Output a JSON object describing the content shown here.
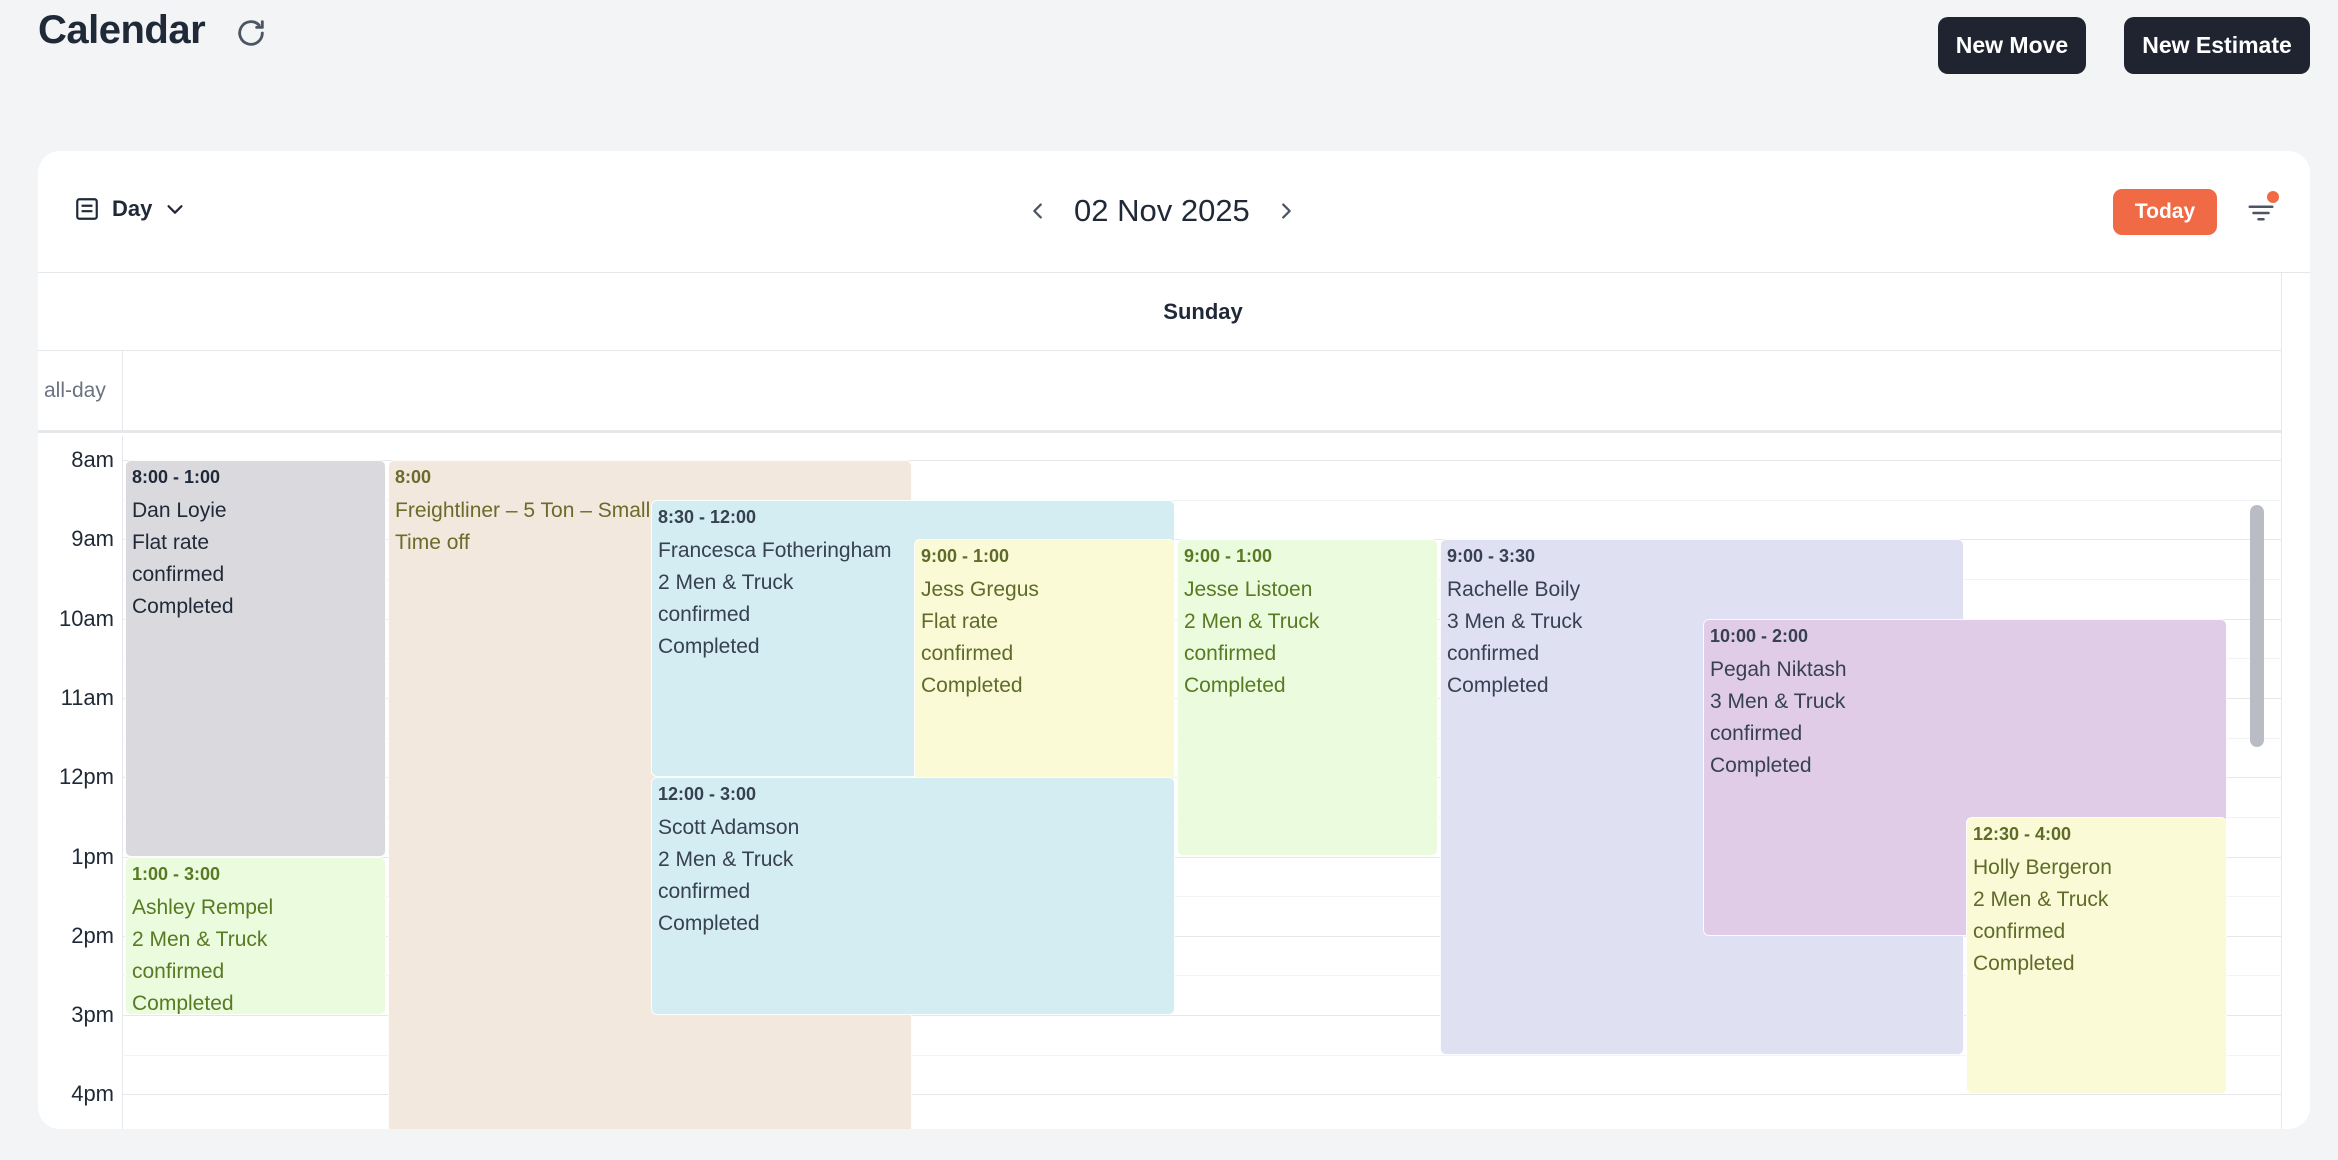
{
  "header": {
    "title": "Calendar",
    "new_move_label": "New Move",
    "new_estimate_label": "New Estimate"
  },
  "toolbar": {
    "view_label": "Day",
    "date_label": "02 Nov 2025",
    "today_label": "Today",
    "filter_active": true
  },
  "day_header": {
    "label": "Sunday"
  },
  "allday": {
    "label": "all-day"
  },
  "hours": [
    "8am",
    "9am",
    "10am",
    "11am",
    "12pm",
    "1pm",
    "2pm",
    "3pm",
    "4pm"
  ],
  "colors": {
    "accent": "#ef6a45",
    "dark_button": "#1f2430",
    "gray_event": "#d9d9de",
    "peach_event": "#f2e8de",
    "blue_event": "#d4edf3",
    "yellow_event": "#fafad7",
    "green_event": "#eafbde",
    "lavender_event": "#e0e0f3",
    "purple_event": "#e0cce6"
  },
  "events": [
    {
      "time": "8:00 - 1:00",
      "lines": [
        "Dan Loyie",
        "Flat rate",
        "confirmed",
        "Completed"
      ],
      "color": "gray",
      "start": 8.0,
      "end": 13.0
    },
    {
      "time": "8:00",
      "lines": [
        "Freightliner – 5 Ton – Small",
        "Time off"
      ],
      "color": "peach",
      "start": 8.0,
      "end": 16.5
    },
    {
      "time": "8:30 - 12:00",
      "lines": [
        "Francesca Fotheringham",
        "2 Men & Truck",
        "confirmed",
        "Completed"
      ],
      "color": "blue",
      "start": 8.5,
      "end": 12.0
    },
    {
      "time": "9:00 - 1:00",
      "lines": [
        "Jess Gregus",
        "Flat rate",
        "confirmed",
        "Completed"
      ],
      "color": "yellow",
      "start": 9.0,
      "end": 13.0
    },
    {
      "time": "9:00 - 1:00",
      "lines": [
        "Jesse Listoen",
        "2 Men & Truck",
        "confirmed",
        "Completed"
      ],
      "color": "green",
      "start": 9.0,
      "end": 13.0
    },
    {
      "time": "9:00 - 3:30",
      "lines": [
        "Rachelle Boily",
        "3 Men & Truck",
        "confirmed",
        "Completed"
      ],
      "color": "lavender",
      "start": 9.0,
      "end": 15.5
    },
    {
      "time": "10:00 - 2:00",
      "lines": [
        "Pegah Niktash",
        "3 Men & Truck",
        "confirmed",
        "Completed"
      ],
      "color": "purple",
      "start": 10.0,
      "end": 14.0
    },
    {
      "time": "12:00 - 3:00",
      "lines": [
        "Scott Adamson",
        "2 Men & Truck",
        "confirmed",
        "Completed"
      ],
      "color": "blue",
      "start": 12.0,
      "end": 15.0
    },
    {
      "time": "12:30 - 4:00",
      "lines": [
        "Holly Bergeron",
        "2 Men & Truck",
        "confirmed",
        "Completed"
      ],
      "color": "yellow",
      "start": 12.5,
      "end": 16.0
    },
    {
      "time": "1:00 - 3:00",
      "lines": [
        "Ashley Rempel",
        "2 Men & Truck",
        "confirmed",
        "Completed"
      ],
      "color": "green",
      "start": 13.0,
      "end": 15.0
    }
  ]
}
